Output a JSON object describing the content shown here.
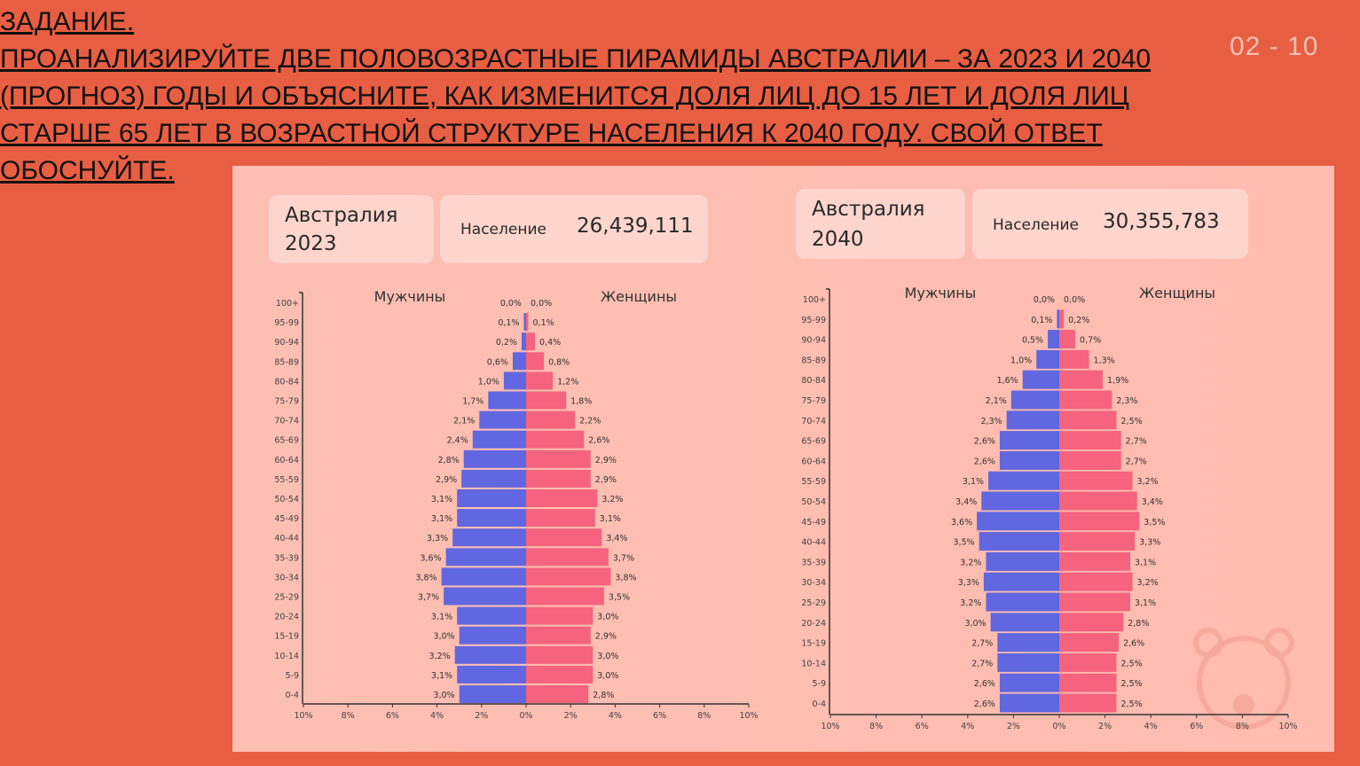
{
  "task": {
    "lines": [
      "ЗАДАНИЕ.",
      "ПРОАНАЛИЗИРУЙТЕ ДВЕ ПОЛОВОЗРАСТНЫЕ ПИРАМИДЫ АВСТРАЛИИ – ЗА 2023 И 2040",
      "(ПРОГНОЗ) ГОДЫ И ОБЪЯСНИТЕ, КАК ИЗМЕНИТСЯ ДОЛЯ ЛИЦ ДО 15 ЛЕТ И ДОЛЯ ЛИЦ",
      "СТАРШЕ 65 ЛЕТ В ВОЗРАСТНОЙ СТРУКТУРЕ НАСЕЛЕНИЯ К 2040 ГОДУ. СВОЙ ОТВЕТ",
      "ОБОСНУЙТЕ."
    ]
  },
  "pager": "02 - 10",
  "colors": {
    "background": "#E85E42",
    "male": "#6167E0",
    "female": "#F5637E"
  },
  "chart_data": [
    {
      "type": "bar",
      "subtype": "population-pyramid",
      "country": "Австралия",
      "year": "2023",
      "population_label": "Население",
      "population": "26,439,111",
      "categories": [
        "100+",
        "95-99",
        "90-94",
        "85-89",
        "80-84",
        "75-79",
        "70-74",
        "65-69",
        "60-64",
        "55-59",
        "50-54",
        "45-49",
        "40-44",
        "35-39",
        "30-34",
        "25-29",
        "20-24",
        "15-19",
        "10-14",
        "5-9",
        "0-4"
      ],
      "series": [
        {
          "name": "Мужчины",
          "values": [
            0.0,
            0.1,
            0.2,
            0.6,
            1.0,
            1.7,
            2.1,
            2.4,
            2.8,
            2.9,
            3.1,
            3.1,
            3.3,
            3.6,
            3.8,
            3.7,
            3.1,
            3.0,
            3.2,
            3.1,
            3.0
          ],
          "labels": [
            "0,0%",
            "0,1%",
            "0,2%",
            "0,6%",
            "1,0%",
            "1,7%",
            "2,1%",
            "2,4%",
            "2,8%",
            "2,9%",
            "3,1%",
            "3,1%",
            "3,3%",
            "3,6%",
            "3,8%",
            "3,7%",
            "3,1%",
            "3,0%",
            "3,2%",
            "3,1%",
            "3,0%"
          ]
        },
        {
          "name": "Женщины",
          "values": [
            0.0,
            0.1,
            0.4,
            0.8,
            1.2,
            1.8,
            2.2,
            2.6,
            2.9,
            2.9,
            3.2,
            3.1,
            3.4,
            3.7,
            3.8,
            3.5,
            3.0,
            2.9,
            3.0,
            3.0,
            2.8
          ],
          "labels": [
            "0,0%",
            "0,1%",
            "0,4%",
            "0,8%",
            "1,2%",
            "1,8%",
            "2,2%",
            "2,6%",
            "2,9%",
            "2,9%",
            "3,2%",
            "3,1%",
            "3,4%",
            "3,7%",
            "3,8%",
            "3,5%",
            "3,0%",
            "2,9%",
            "3,0%",
            "3,0%",
            "2,8%"
          ]
        }
      ],
      "xlim": [
        -10,
        10
      ],
      "xticks": [
        "10%",
        "8%",
        "6%",
        "4%",
        "2%",
        "0%",
        "2%",
        "4%",
        "6%",
        "8%",
        "10%"
      ]
    },
    {
      "type": "bar",
      "subtype": "population-pyramid",
      "country": "Австралия",
      "year": "2040",
      "population_label": "Население",
      "population": "30,355,783",
      "categories": [
        "100+",
        "95-99",
        "90-94",
        "85-89",
        "80-84",
        "75-79",
        "70-74",
        "65-69",
        "60-64",
        "55-59",
        "50-54",
        "45-49",
        "40-44",
        "35-39",
        "30-34",
        "25-29",
        "20-24",
        "15-19",
        "10-14",
        "5-9",
        "0-4"
      ],
      "series": [
        {
          "name": "Мужчины",
          "values": [
            0.0,
            0.1,
            0.5,
            1.0,
            1.6,
            2.1,
            2.3,
            2.6,
            2.6,
            3.1,
            3.4,
            3.6,
            3.5,
            3.2,
            3.3,
            3.2,
            3.0,
            2.7,
            2.7,
            2.6,
            2.6
          ],
          "labels": [
            "0,0%",
            "0,1%",
            "0,5%",
            "1,0%",
            "1,6%",
            "2,1%",
            "2,3%",
            "2,6%",
            "2,6%",
            "3,1%",
            "3,4%",
            "3,6%",
            "3,5%",
            "3,2%",
            "3,3%",
            "3,2%",
            "3,0%",
            "2,7%",
            "2,7%",
            "2,6%",
            "2,6%"
          ]
        },
        {
          "name": "Женщины",
          "values": [
            0.0,
            0.2,
            0.7,
            1.3,
            1.9,
            2.3,
            2.5,
            2.7,
            2.7,
            3.2,
            3.4,
            3.5,
            3.3,
            3.1,
            3.2,
            3.1,
            2.8,
            2.6,
            2.5,
            2.5,
            2.5
          ],
          "labels": [
            "0,0%",
            "0,2%",
            "0,7%",
            "1,3%",
            "1,9%",
            "2,3%",
            "2,5%",
            "2,7%",
            "2,7%",
            "3,2%",
            "3,4%",
            "3,5%",
            "3,3%",
            "3,1%",
            "3,2%",
            "3,1%",
            "2,8%",
            "2,6%",
            "2,5%",
            "2,5%",
            "2,5%"
          ]
        }
      ],
      "xlim": [
        -10,
        10
      ],
      "xticks": [
        "10%",
        "8%",
        "6%",
        "4%",
        "2%",
        "0%",
        "2%",
        "4%",
        "6%",
        "8%",
        "10%"
      ]
    }
  ]
}
